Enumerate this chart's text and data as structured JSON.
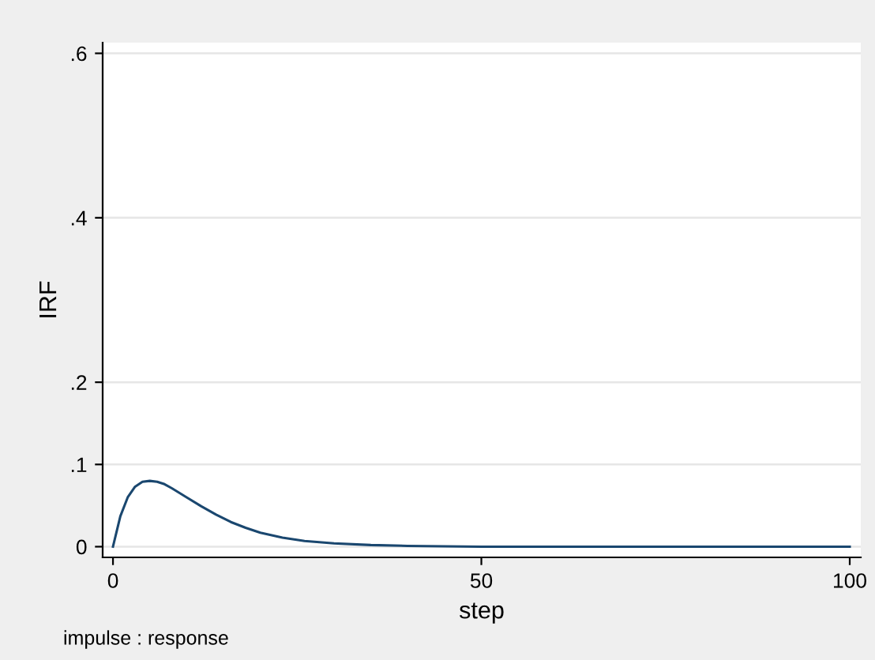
{
  "chart_data": {
    "type": "line",
    "xlabel": "step",
    "ylabel": "IRF",
    "annotations": [
      "impulse : response"
    ],
    "x": [
      0,
      1,
      2,
      3,
      4,
      5,
      6,
      7,
      8,
      10,
      12,
      14,
      16,
      18,
      20,
      23,
      26,
      30,
      35,
      40,
      50,
      60,
      80,
      100
    ],
    "series": [
      {
        "color": "#1a476f",
        "values": [
          0,
          0.037,
          0.06,
          0.073,
          0.079,
          0.08,
          0.079,
          0.076,
          0.071,
          0.06,
          0.049,
          0.039,
          0.03,
          0.023,
          0.017,
          0.011,
          0.007,
          0.004,
          0.002,
          0.001,
          0,
          0,
          0,
          0
        ]
      }
    ],
    "xlim": [
      -1.4,
      101.5
    ],
    "xticks": [
      0,
      50,
      100
    ],
    "ylim": [
      -0.013,
      0.613
    ],
    "yticks": [
      {
        "value": 0,
        "label": "0"
      },
      {
        "value": 0.1,
        "label": ".1"
      },
      {
        "value": 0.2,
        "label": ".2"
      },
      {
        "value": 0.4,
        "label": ".4"
      },
      {
        "value": 0.6,
        "label": ".6"
      }
    ],
    "grid": "y"
  }
}
